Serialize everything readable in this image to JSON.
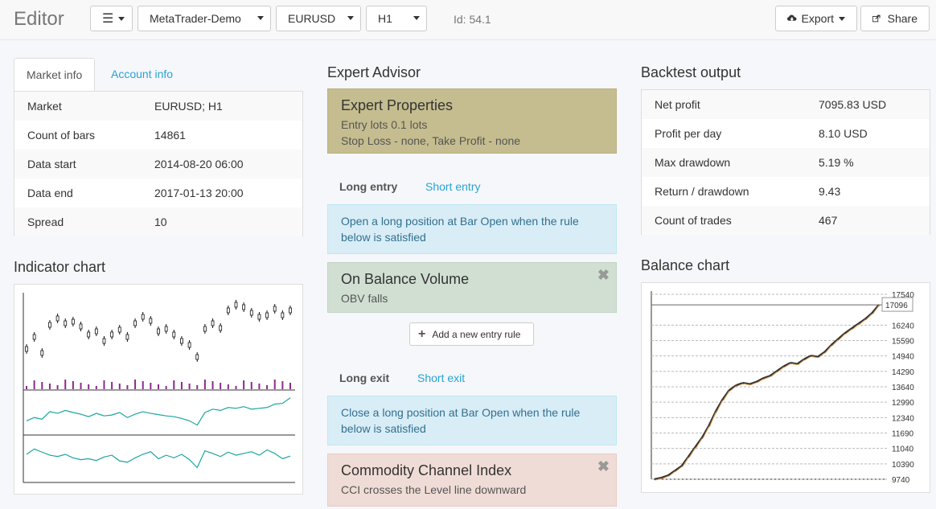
{
  "app": {
    "title": "Editor"
  },
  "toolbar": {
    "menu_icon": "hamburger-icon",
    "server": "MetaTrader-Demo",
    "symbol": "EURUSD",
    "period": "H1",
    "id_text": "Id: 54.1",
    "export_label": "Export",
    "share_label": "Share"
  },
  "market_tabs": {
    "market_info": "Market info",
    "account_info": "Account info"
  },
  "market_info": [
    {
      "label": "Market",
      "value": "EURUSD; H1"
    },
    {
      "label": "Count of bars",
      "value": "14861"
    },
    {
      "label": "Data start",
      "value": "2014-08-20 06:00"
    },
    {
      "label": "Data end",
      "value": "2017-01-13 20:00"
    },
    {
      "label": "Spread",
      "value": "10"
    }
  ],
  "indicator_chart": {
    "title": "Indicator chart"
  },
  "expert": {
    "title": "Expert Advisor",
    "properties": {
      "title": "Expert Properties",
      "line1": "Entry lots 0.1 lots",
      "line2": "Stop Loss - none, Take Profit - none"
    },
    "entry_tabs": {
      "long": "Long entry",
      "short": "Short entry"
    },
    "entry_info": {
      "line1": "Open a long position at Bar Open when the rule",
      "line2": "below is satisfied"
    },
    "entry_rule": {
      "title": "On Balance Volume",
      "text": "OBV falls"
    },
    "add_entry": "Add a new entry rule",
    "exit_tabs": {
      "long": "Long exit",
      "short": "Short exit"
    },
    "exit_info": {
      "line1": "Close a long position at Bar Open when the rule",
      "line2": "below is satisfied"
    },
    "exit_rule": {
      "title": "Commodity Channel Index",
      "text": "CCI crosses the Level line downward"
    }
  },
  "backtest": {
    "title": "Backtest output",
    "rows": [
      {
        "label": "Net profit",
        "value": "7095.83 USD"
      },
      {
        "label": "Profit per day",
        "value": "8.10 USD"
      },
      {
        "label": "Max drawdown",
        "value": "5.19 %"
      },
      {
        "label": "Return / drawdown",
        "value": "9.43"
      },
      {
        "label": "Count of trades",
        "value": "467"
      }
    ]
  },
  "balance_chart_title": "Balance chart",
  "chart_data": [
    {
      "type": "line",
      "title": "Balance chart",
      "ylim": [
        9740,
        17540
      ],
      "y_ticks": [
        17540,
        16240,
        15590,
        14940,
        14290,
        13640,
        12990,
        12340,
        11690,
        11040,
        10390,
        9740
      ],
      "current_label": "17096",
      "grid": true,
      "series": [
        {
          "values": [
            9740,
            9800,
            9900,
            10100,
            10300,
            10700,
            11100,
            11500,
            12000,
            12600,
            13100,
            13500,
            13700,
            13800,
            13750,
            13850,
            14000,
            14100,
            14300,
            14500,
            14650,
            14600,
            14800,
            14950,
            14900,
            15100,
            15400,
            15650,
            15900,
            16100,
            16300,
            16500,
            16750,
            17096
          ]
        }
      ]
    },
    {
      "type": "line",
      "title": "Indicator chart",
      "series": [
        {
          "name": "price",
          "values": [
            40,
            55,
            35,
            70,
            78,
            72,
            74,
            68,
            58,
            62,
            50,
            58,
            64,
            55,
            72,
            80,
            75,
            62,
            65,
            58,
            50,
            45,
            30,
            65,
            72,
            66,
            88,
            95,
            92,
            85,
            80,
            82,
            90,
            82,
            88
          ]
        },
        {
          "name": "OBV",
          "values": [
            30,
            38,
            34,
            52,
            48,
            55,
            50,
            46,
            40,
            48,
            42,
            44,
            50,
            38,
            46,
            52,
            48,
            45,
            42,
            40,
            36,
            30,
            20,
            50,
            58,
            55,
            62,
            60,
            64,
            58,
            60,
            62,
            70,
            72,
            85
          ]
        },
        {
          "name": "CCI",
          "values": [
            60,
            72,
            65,
            58,
            55,
            60,
            52,
            48,
            50,
            46,
            54,
            58,
            45,
            42,
            52,
            60,
            66,
            50,
            58,
            52,
            60,
            48,
            30,
            68,
            62,
            55,
            65,
            58,
            62,
            66,
            58,
            70,
            62,
            50,
            56
          ]
        }
      ]
    }
  ]
}
